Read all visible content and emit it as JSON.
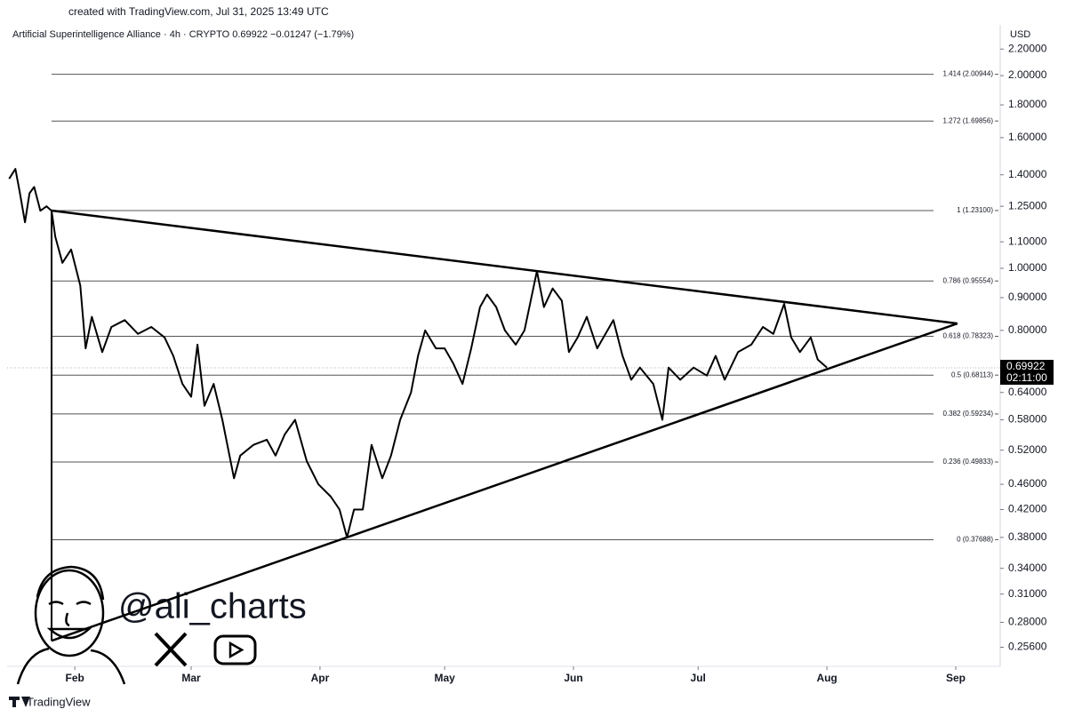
{
  "chart_data": {
    "type": "line",
    "watermark": "created with TradingView.com, Jul 31, 2025 13:49 UTC",
    "title": "Artificial Superintelligence Alliance · 4h · CRYPTO  0.69922  −0.01247 (−1.79%)",
    "currency": "USD",
    "handle": "@ali_charts",
    "brand": "TradingView",
    "last_price": 0.69922,
    "countdown": "02:11:00",
    "log_scale": true,
    "color": "#000000",
    "x": [
      -15.8,
      -14.3,
      -13.3,
      -12,
      -10.9,
      -9.8,
      -8.3,
      -6.8,
      -5.6,
      -4.7,
      -3,
      -0.9,
      1.3,
      2.6,
      4.1,
      6.6,
      8.8,
      12,
      15.2,
      18.4,
      21.6,
      23.7,
      25.9,
      28,
      29.5,
      31.2,
      33.4,
      35.5,
      38.3,
      39.8,
      43,
      46.2,
      48.3,
      50.5,
      53,
      55.8,
      58.6,
      61.6,
      63.7,
      65.5,
      67.2,
      69.3,
      71.4,
      74,
      76.1,
      78.3,
      80.9,
      82.6,
      84.3,
      86.9,
      89,
      91.1,
      93.3,
      95.4,
      97.5,
      99.2,
      101.4,
      103.5,
      106.1,
      108.2,
      111.2,
      112.9,
      115,
      117.2,
      118.9,
      121,
      123.2,
      125.7,
      129.6,
      131.8,
      133.9,
      136,
      139.2,
      141.4,
      142.9,
      145.7,
      148.9,
      152.1,
      154.2,
      156.4,
      159.6,
      162.8,
      165.6,
      168.1,
      170.7,
      172.4,
      174.5,
      177.1,
      178.8,
      181
    ],
    "values": [
      1.38,
      1.43,
      1.32,
      1.18,
      1.31,
      1.34,
      1.23,
      1.25,
      1.23,
      1.12,
      1.02,
      1.07,
      0.94,
      0.75,
      0.84,
      0.74,
      0.81,
      0.83,
      0.79,
      0.81,
      0.78,
      0.73,
      0.66,
      0.63,
      0.76,
      0.61,
      0.66,
      0.58,
      0.47,
      0.51,
      0.53,
      0.54,
      0.51,
      0.55,
      0.58,
      0.5,
      0.46,
      0.44,
      0.42,
      0.38,
      0.42,
      0.42,
      0.53,
      0.47,
      0.51,
      0.58,
      0.64,
      0.73,
      0.8,
      0.75,
      0.75,
      0.71,
      0.66,
      0.75,
      0.87,
      0.91,
      0.87,
      0.8,
      0.76,
      0.8,
      0.99,
      0.87,
      0.93,
      0.89,
      0.74,
      0.78,
      0.84,
      0.75,
      0.83,
      0.73,
      0.67,
      0.7,
      0.66,
      0.58,
      0.7,
      0.67,
      0.7,
      0.68,
      0.73,
      0.67,
      0.74,
      0.76,
      0.81,
      0.79,
      0.88,
      0.78,
      0.74,
      0.78,
      0.72,
      0.7
    ],
    "xlim": [
      -16.3,
      222.7
    ],
    "xticks": [
      {
        "value": 0,
        "label": "Feb"
      },
      {
        "value": 28,
        "label": "Mar"
      },
      {
        "value": 59,
        "label": "Apr"
      },
      {
        "value": 89,
        "label": "May"
      },
      {
        "value": 120,
        "label": "Jun"
      },
      {
        "value": 150,
        "label": "Jul"
      },
      {
        "value": 181,
        "label": "Aug"
      },
      {
        "value": 212,
        "label": "Sep"
      }
    ],
    "ylim": [
      0.239,
      2.4
    ],
    "yticks": [
      {
        "value": 2.2,
        "label": "2.20000"
      },
      {
        "value": 2,
        "label": "2.00000"
      },
      {
        "value": 1.8,
        "label": "1.80000"
      },
      {
        "value": 1.6,
        "label": "1.60000"
      },
      {
        "value": 1.4,
        "label": "1.40000"
      },
      {
        "value": 1.25,
        "label": "1.25000"
      },
      {
        "value": 1.1,
        "label": "1.10000"
      },
      {
        "value": 1,
        "label": "1.00000"
      },
      {
        "value": 0.9,
        "label": "0.90000"
      },
      {
        "value": 0.8,
        "label": "0.80000"
      },
      {
        "value": 0.64,
        "label": "0.64000"
      },
      {
        "value": 0.58,
        "label": "0.58000"
      },
      {
        "value": 0.52,
        "label": "0.52000"
      },
      {
        "value": 0.46,
        "label": "0.46000"
      },
      {
        "value": 0.42,
        "label": "0.42000"
      },
      {
        "value": 0.38,
        "label": "0.38000"
      },
      {
        "value": 0.34,
        "label": "0.34000"
      },
      {
        "value": 0.31,
        "label": "0.31000"
      },
      {
        "value": 0.28,
        "label": "0.28000"
      },
      {
        "value": 0.256,
        "label": "0.25600"
      }
    ],
    "fib_levels": [
      {
        "label": "1.414 (2.00944)",
        "value": 2.00944
      },
      {
        "label": "1.272 (1.69856)",
        "value": 1.69856
      },
      {
        "label": "1 (1.23100)",
        "value": 1.231
      },
      {
        "label": "0.786 (0.95554)",
        "value": 0.95554
      },
      {
        "label": "0.618 (0.78323)",
        "value": 0.78323
      },
      {
        "label": "0.5 (0.68113)",
        "value": 0.68113
      },
      {
        "label": "0.382 (0.59234)",
        "value": 0.59234
      },
      {
        "label": "0.236 (0.49833)",
        "value": 0.49833
      },
      {
        "label": "0 (0.37688)",
        "value": 0.37688
      }
    ],
    "trendlines": [
      {
        "x": [
          -5.6,
          212.4
        ],
        "y": [
          1.231,
          0.82
        ]
      },
      {
        "x": [
          -5.6,
          212.4
        ],
        "y": [
          0.262,
          0.82
        ]
      }
    ]
  }
}
